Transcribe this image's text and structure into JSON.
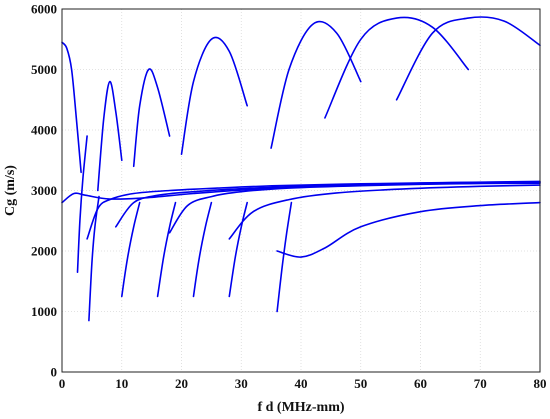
{
  "chart_data": {
    "type": "line",
    "title": "",
    "xlabel": "f d (MHz-mm)",
    "ylabel": "Cg (m/s)",
    "xlim": [
      0,
      80
    ],
    "ylim": [
      0,
      6000
    ],
    "x_ticks": [
      "0",
      "10",
      "20",
      "30",
      "40",
      "50",
      "60",
      "70",
      "80"
    ],
    "y_ticks": [
      "0",
      "1000",
      "2000",
      "3000",
      "4000",
      "5000",
      "6000"
    ],
    "grid": true,
    "legend": "none",
    "color": "#0000ee",
    "series": [
      {
        "x": [
          0,
          2,
          4,
          8,
          14,
          22,
          32,
          45,
          60,
          80
        ],
        "y": [
          2800,
          2950,
          2920,
          2860,
          2880,
          2950,
          3020,
          3080,
          3120,
          3150
        ]
      },
      {
        "x": [
          0,
          0.8,
          1.6,
          2.4,
          3.2
        ],
        "y": [
          5450,
          5350,
          5000,
          4200,
          3300
        ]
      },
      {
        "x": [
          2.6,
          3.0,
          3.5,
          4.2
        ],
        "y": [
          1650,
          2500,
          3200,
          3900
        ]
      },
      {
        "x": [
          4.2,
          6,
          8,
          12,
          18,
          26,
          36,
          50,
          65,
          80
        ],
        "y": [
          2200,
          2700,
          2850,
          2950,
          3000,
          3040,
          3080,
          3110,
          3130,
          3140
        ]
      },
      {
        "x": [
          4.5,
          5.0,
          5.5,
          6.2
        ],
        "y": [
          850,
          1800,
          2400,
          2900
        ]
      },
      {
        "x": [
          6,
          7,
          8,
          9,
          10
        ],
        "y": [
          3000,
          4200,
          4800,
          4300,
          3500
        ]
      },
      {
        "x": [
          9,
          12,
          16,
          22,
          30,
          40,
          55,
          70,
          80
        ],
        "y": [
          2400,
          2800,
          2920,
          2980,
          3030,
          3070,
          3100,
          3120,
          3130
        ]
      },
      {
        "x": [
          12,
          13,
          14.5,
          16,
          18
        ],
        "y": [
          3400,
          4400,
          5000,
          4700,
          3900
        ]
      },
      {
        "x": [
          18,
          21,
          25,
          30,
          38,
          50,
          65,
          80
        ],
        "y": [
          2300,
          2750,
          2900,
          2980,
          3040,
          3080,
          3110,
          3120
        ]
      },
      {
        "x": [
          20,
          22,
          25,
          28,
          31
        ],
        "y": [
          3600,
          4800,
          5500,
          5300,
          4400
        ]
      },
      {
        "x": [
          28,
          32,
          38,
          46,
          58,
          70,
          80
        ],
        "y": [
          2200,
          2650,
          2850,
          2960,
          3030,
          3070,
          3090
        ]
      },
      {
        "x": [
          35,
          38,
          42,
          46,
          50
        ],
        "y": [
          3700,
          5000,
          5750,
          5600,
          4800
        ]
      },
      {
        "x": [
          36,
          40,
          44,
          50,
          60,
          70,
          80
        ],
        "y": [
          2000,
          1900,
          2050,
          2400,
          2650,
          2750,
          2800
        ]
      },
      {
        "x": [
          44,
          50,
          56,
          62,
          68
        ],
        "y": [
          4200,
          5500,
          5850,
          5700,
          5000
        ]
      },
      {
        "x": [
          56,
          62,
          68,
          74,
          80
        ],
        "y": [
          4500,
          5600,
          5850,
          5800,
          5400
        ]
      },
      {
        "x": [
          10,
          11,
          12,
          13
        ],
        "y": [
          1250,
          1900,
          2400,
          2800
        ]
      },
      {
        "x": [
          16,
          17,
          18,
          19
        ],
        "y": [
          1250,
          1900,
          2400,
          2800
        ]
      },
      {
        "x": [
          22,
          23,
          24,
          25
        ],
        "y": [
          1250,
          1900,
          2400,
          2800
        ]
      },
      {
        "x": [
          28,
          29,
          30,
          31
        ],
        "y": [
          1250,
          1900,
          2400,
          2800
        ]
      },
      {
        "x": [
          36,
          36.8,
          37.6,
          38.4
        ],
        "y": [
          1000,
          1700,
          2300,
          2800
        ]
      }
    ]
  }
}
